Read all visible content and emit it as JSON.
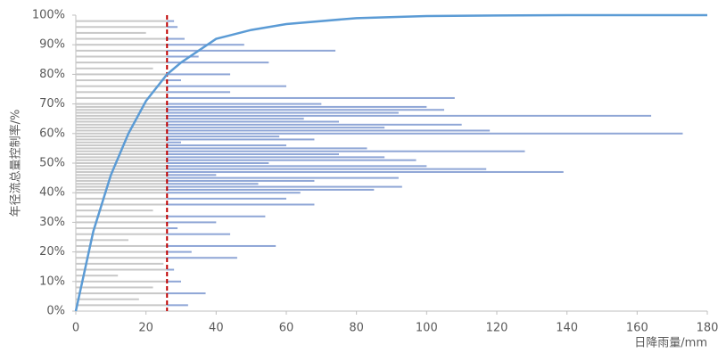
{
  "chart_data": {
    "type": "line",
    "xlabel": "日降雨量/mm",
    "ylabel": "年径流总量控制率/%",
    "xlim": [
      0,
      180
    ],
    "ylim": [
      0,
      100
    ],
    "xticks": [
      0,
      20,
      40,
      60,
      80,
      100,
      120,
      140,
      160,
      180
    ],
    "yticks": [
      {
        "value": 0,
        "label": "0%"
      },
      {
        "value": 10,
        "label": "10%"
      },
      {
        "value": 20,
        "label": "20%"
      },
      {
        "value": 30,
        "label": "30%"
      },
      {
        "value": 40,
        "label": "40%"
      },
      {
        "value": 50,
        "label": "50%"
      },
      {
        "value": 60,
        "label": "60%"
      },
      {
        "value": 70,
        "label": "70%"
      },
      {
        "value": 80,
        "label": "80%"
      },
      {
        "value": 90,
        "label": "90%"
      },
      {
        "value": 100,
        "label": "100%"
      }
    ],
    "threshold": 26,
    "threshold_color": "#c00000",
    "series": [
      {
        "color": "#5b9bd5",
        "x": [
          0,
          5,
          10,
          15,
          20,
          26,
          30,
          40,
          50,
          60,
          80,
          100,
          120,
          140,
          160,
          180
        ],
        "values": [
          0,
          27,
          46,
          60,
          71,
          80,
          84,
          92,
          95,
          97,
          99,
          99.7,
          99.9,
          100,
          100,
          100
        ]
      }
    ],
    "rain_bars": {
      "color_below": "#c8c8c8",
      "color_above": "#8fa6d6",
      "y": [
        2,
        4,
        6,
        8,
        10,
        12,
        14,
        16,
        18,
        20,
        22,
        24,
        26,
        28,
        30,
        32,
        34,
        36,
        38,
        40,
        41,
        42,
        43,
        44,
        45,
        46,
        47,
        48,
        49,
        50,
        51,
        52,
        53,
        54,
        55,
        56,
        57,
        58,
        59,
        60,
        61,
        62,
        63,
        64,
        65,
        66,
        67,
        68,
        69,
        70,
        72,
        74,
        76,
        78,
        80,
        82,
        84,
        86,
        88,
        90,
        92,
        94,
        96,
        98
      ],
      "values": [
        32,
        18,
        37,
        22,
        30,
        12,
        28,
        25,
        46,
        33,
        57,
        15,
        44,
        29,
        40,
        54,
        22,
        68,
        60,
        64,
        85,
        93,
        52,
        68,
        92,
        40,
        139,
        117,
        100,
        55,
        97,
        88,
        75,
        128,
        83,
        60,
        30,
        68,
        58,
        173,
        118,
        88,
        110,
        75,
        65,
        164,
        92,
        105,
        100,
        70,
        108,
        44,
        60,
        30,
        44,
        22,
        55,
        35,
        74,
        48,
        31,
        20,
        29,
        28
      ]
    }
  }
}
